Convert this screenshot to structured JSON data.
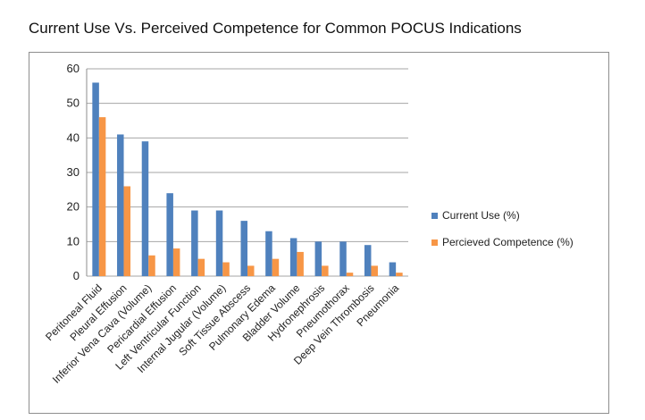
{
  "chart_data": {
    "type": "bar",
    "title": "Current Use Vs. Perceived Competence for Common POCUS Indications",
    "xlabel": "",
    "ylabel": "",
    "ylim": [
      0,
      60
    ],
    "yticks": [
      0,
      10,
      20,
      30,
      40,
      50,
      60
    ],
    "grid": true,
    "legend_position": "right",
    "categories": [
      "Peritoneal Fluid",
      "Pleural Effusion",
      "Inferior Vena Cava (Volume)",
      "Pericardial Effusion",
      "Left Ventricular Function",
      "Internal Jugular (Volume)",
      "Soft Tissue Abscess",
      "Pulmonary Edema",
      "Bladder Volume",
      "Hydronephrosis",
      "Pneumothorax",
      "Deep Vein Thrombosis",
      "Pneumonia"
    ],
    "series": [
      {
        "name": "Current Use (%)",
        "color": "#4f81bd",
        "values": [
          56,
          41,
          39,
          24,
          19,
          19,
          16,
          13,
          11,
          10,
          10,
          9,
          4
        ]
      },
      {
        "name": "Percieved Competence (%)",
        "color": "#f79646",
        "values": [
          46,
          26,
          6,
          8,
          5,
          4,
          3,
          5,
          7,
          3,
          1,
          3,
          1
        ]
      }
    ]
  }
}
